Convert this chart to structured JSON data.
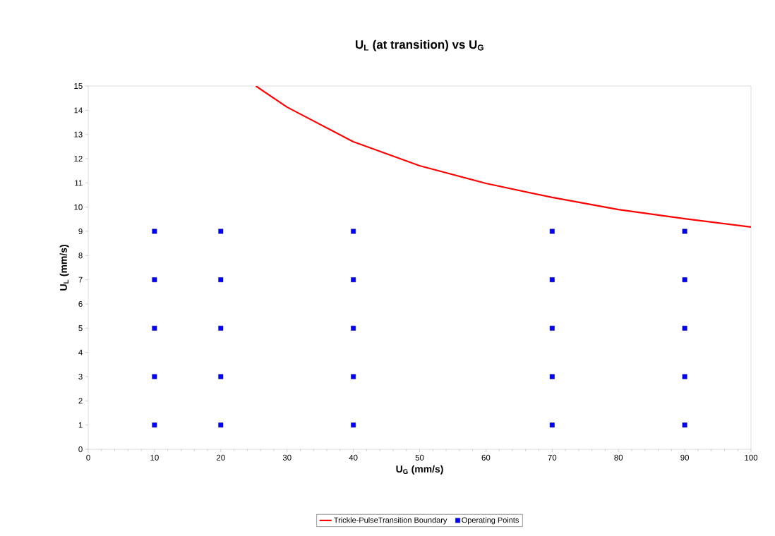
{
  "chart_data": {
    "type": "scatter",
    "title": "U$_{L}$ (at transition) vs U$_{G}$",
    "xlabel": "U$_{G}$ (mm/s)",
    "ylabel": "U$_{L}$ (mm/s)",
    "xlim": [
      0,
      100
    ],
    "ylim": [
      0,
      15
    ],
    "xticks": [
      0,
      10,
      20,
      30,
      40,
      50,
      60,
      70,
      80,
      90,
      100
    ],
    "yticks": [
      0,
      1,
      2,
      3,
      4,
      5,
      6,
      7,
      8,
      9,
      10,
      11,
      12,
      13,
      14,
      15
    ],
    "grid": false,
    "legend": "bottom",
    "marker": "square",
    "series": [
      {
        "name": "Trickle-PulseTransition Boundary",
        "type": "line",
        "marker": "none",
        "line_style": "solid",
        "color": "#ff0000",
        "x": [
          25.3,
          30,
          40,
          50,
          60,
          70,
          80,
          90,
          100
        ],
        "values": [
          15,
          14.13,
          12.7,
          11.71,
          10.98,
          10.4,
          9.9,
          9.52,
          9.18
        ]
      },
      {
        "name": "Operating Points",
        "color": "#0000ff",
        "x": [
          10,
          10,
          10,
          10,
          10,
          20,
          20,
          20,
          20,
          20,
          40,
          40,
          40,
          40,
          40,
          70,
          70,
          70,
          70,
          70,
          90,
          90,
          90,
          90,
          90
        ],
        "values": [
          1,
          3,
          5,
          7,
          9,
          1,
          3,
          5,
          7,
          9,
          1,
          3,
          5,
          7,
          9,
          1,
          3,
          5,
          7,
          9,
          1,
          3,
          5,
          7,
          9
        ]
      }
    ]
  }
}
